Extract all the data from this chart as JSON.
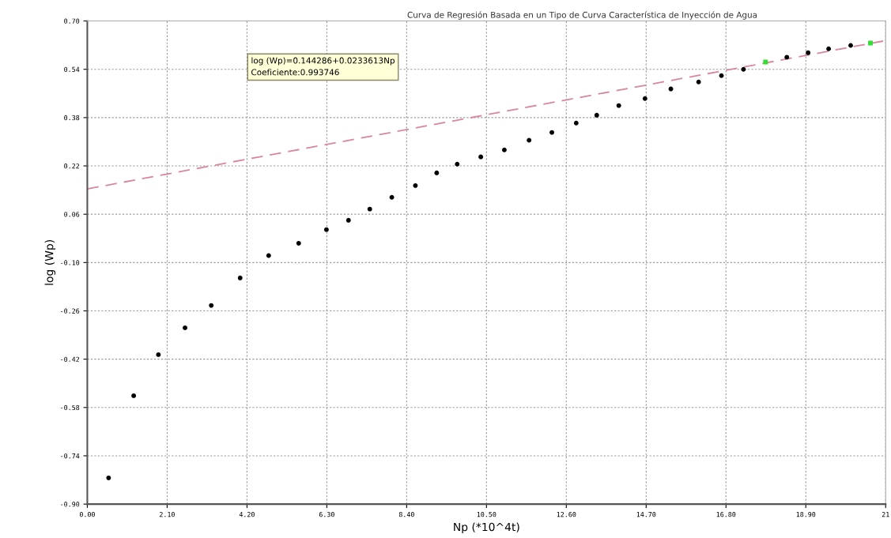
{
  "chart_data": {
    "type": "scatter",
    "title": "Curva de Regresión Basada en un Tipo de Curva Característica de Inyección de Agua",
    "xlabel": "Np (*10^4t)",
    "ylabel": "log (Wp)",
    "series": [
      {
        "type": "line",
        "color": "#d9869a",
        "line_style": "dashed",
        "marker": "none",
        "x": [
          0,
          21
        ],
        "values": [
          0.144,
          0.635
        ]
      },
      {
        "color": "#000000",
        "marker": "circle",
        "x": [
          0.56,
          1.22,
          1.87,
          2.57,
          3.26,
          4.02,
          4.77,
          5.56,
          6.29,
          6.87,
          7.43,
          8.01,
          8.63,
          9.19,
          9.73,
          10.35,
          10.97,
          11.62,
          12.22,
          12.86,
          13.4,
          13.98,
          14.67,
          15.35,
          16.08,
          16.68,
          17.26,
          18.4,
          18.96,
          19.5,
          20.08
        ],
        "values": [
          -0.813,
          -0.541,
          -0.405,
          -0.316,
          -0.242,
          -0.151,
          -0.077,
          -0.036,
          0.009,
          0.04,
          0.077,
          0.116,
          0.155,
          0.197,
          0.226,
          0.25,
          0.273,
          0.305,
          0.331,
          0.362,
          0.388,
          0.42,
          0.443,
          0.475,
          0.498,
          0.519,
          0.54,
          0.58,
          0.595,
          0.608,
          0.619
        ]
      },
      {
        "color": "#33dd33",
        "marker": "square",
        "x": [
          17.84,
          20.6
        ],
        "values": [
          0.564,
          0.627
        ]
      }
    ],
    "xlim": [
      0,
      21
    ],
    "ylim": [
      -0.9,
      0.7
    ],
    "xticks": [
      {
        "value": 0,
        "label": "0.00"
      },
      {
        "value": 2.1,
        "label": "2.10"
      },
      {
        "value": 4.2,
        "label": "4.20"
      },
      {
        "value": 6.3,
        "label": "6.30"
      },
      {
        "value": 8.4,
        "label": "8.40"
      },
      {
        "value": 10.5,
        "label": "10.50"
      },
      {
        "value": 12.6,
        "label": "12.60"
      },
      {
        "value": 14.7,
        "label": "14.70"
      },
      {
        "value": 16.8,
        "label": "16.80"
      },
      {
        "value": 18.9,
        "label": "18.90"
      },
      21
    ],
    "yticks": [
      {
        "value": -0.9,
        "label": "-0.90"
      },
      {
        "value": -0.74,
        "label": "-0.74"
      },
      {
        "value": -0.58,
        "label": "-0.58"
      },
      {
        "value": -0.42,
        "label": "-0.42"
      },
      {
        "value": -0.26,
        "label": "-0.26"
      },
      {
        "value": -0.1,
        "label": "-0.10"
      },
      {
        "value": 0.06,
        "label": "0.06"
      },
      {
        "value": 0.22,
        "label": "0.22"
      },
      {
        "value": 0.38,
        "label": "0.38"
      },
      {
        "value": 0.54,
        "label": "0.54"
      },
      {
        "value": 0.7,
        "label": "0.70"
      }
    ],
    "grid": true,
    "annotations": [
      "log (Wp)=0.144286+0.0233613Np\nCoeficiente:0.993746"
    ]
  }
}
